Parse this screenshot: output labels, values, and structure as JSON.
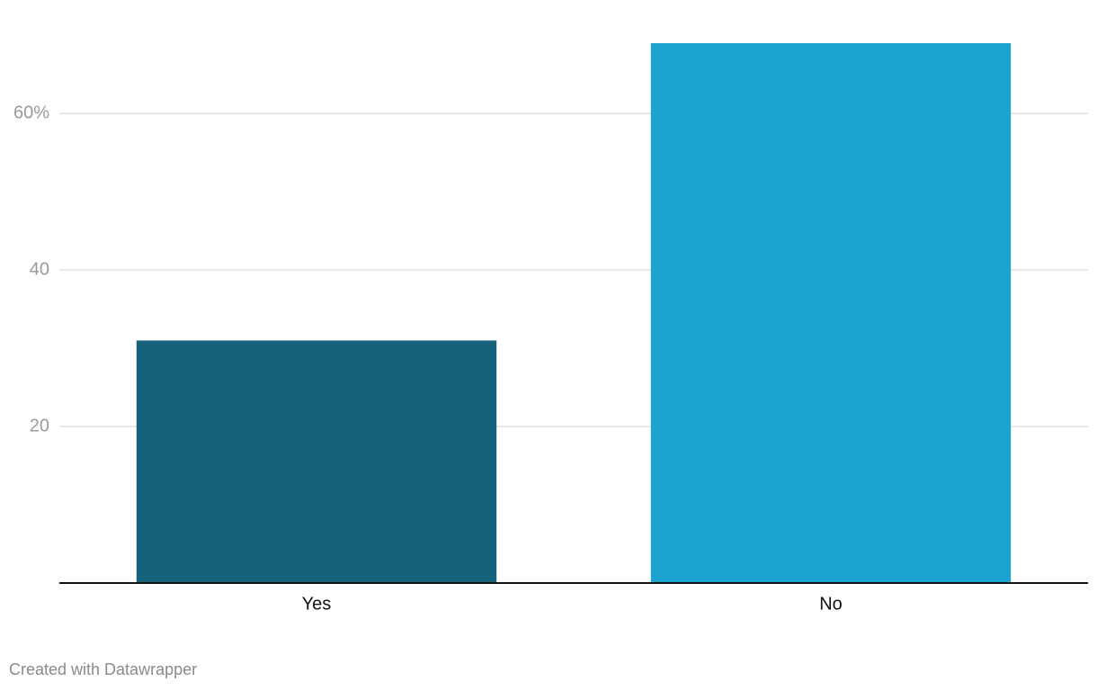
{
  "chart_data": {
    "type": "bar",
    "categories": [
      "Yes",
      "No"
    ],
    "values": [
      31,
      69
    ],
    "colors": [
      "#17627b",
      "#1ba2ce"
    ],
    "ylim": [
      0,
      69
    ],
    "yticks": [
      20,
      40,
      {
        "value": 60,
        "label": "60%"
      }
    ],
    "grid": true,
    "credit": "Created with Datawrapper"
  }
}
